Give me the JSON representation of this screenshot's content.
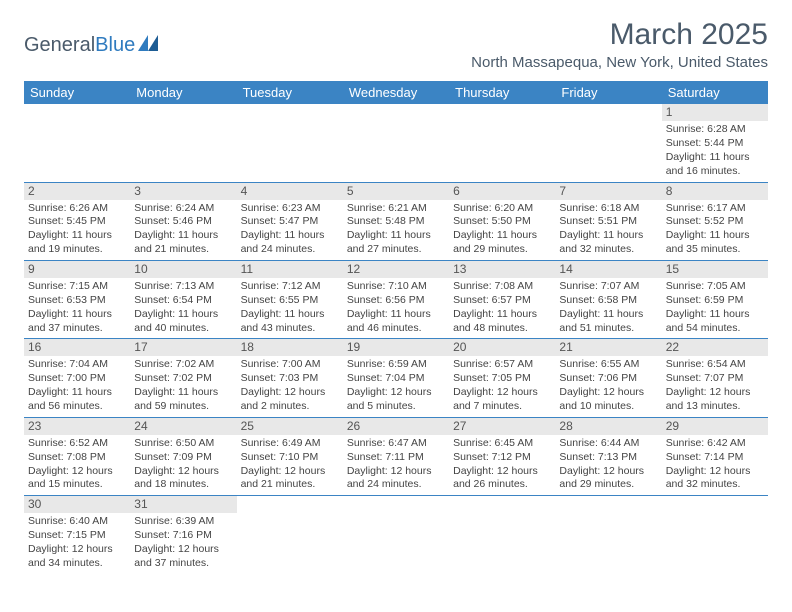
{
  "logo": {
    "text1": "General",
    "text2": "Blue"
  },
  "title": "March 2025",
  "location": "North Massapequa, New York, United States",
  "colors": {
    "header_bg": "#3b84c4",
    "header_text": "#ffffff",
    "grid_line": "#3b84c4",
    "daynum_bg": "#e8e8e8",
    "text": "#4a5a6a"
  },
  "day_names": [
    "Sunday",
    "Monday",
    "Tuesday",
    "Wednesday",
    "Thursday",
    "Friday",
    "Saturday"
  ],
  "weeks": [
    [
      null,
      null,
      null,
      null,
      null,
      null,
      {
        "n": "1",
        "sunrise": "Sunrise: 6:28 AM",
        "sunset": "Sunset: 5:44 PM",
        "daylight": "Daylight: 11 hours and 16 minutes."
      }
    ],
    [
      {
        "n": "2",
        "sunrise": "Sunrise: 6:26 AM",
        "sunset": "Sunset: 5:45 PM",
        "daylight": "Daylight: 11 hours and 19 minutes."
      },
      {
        "n": "3",
        "sunrise": "Sunrise: 6:24 AM",
        "sunset": "Sunset: 5:46 PM",
        "daylight": "Daylight: 11 hours and 21 minutes."
      },
      {
        "n": "4",
        "sunrise": "Sunrise: 6:23 AM",
        "sunset": "Sunset: 5:47 PM",
        "daylight": "Daylight: 11 hours and 24 minutes."
      },
      {
        "n": "5",
        "sunrise": "Sunrise: 6:21 AM",
        "sunset": "Sunset: 5:48 PM",
        "daylight": "Daylight: 11 hours and 27 minutes."
      },
      {
        "n": "6",
        "sunrise": "Sunrise: 6:20 AM",
        "sunset": "Sunset: 5:50 PM",
        "daylight": "Daylight: 11 hours and 29 minutes."
      },
      {
        "n": "7",
        "sunrise": "Sunrise: 6:18 AM",
        "sunset": "Sunset: 5:51 PM",
        "daylight": "Daylight: 11 hours and 32 minutes."
      },
      {
        "n": "8",
        "sunrise": "Sunrise: 6:17 AM",
        "sunset": "Sunset: 5:52 PM",
        "daylight": "Daylight: 11 hours and 35 minutes."
      }
    ],
    [
      {
        "n": "9",
        "sunrise": "Sunrise: 7:15 AM",
        "sunset": "Sunset: 6:53 PM",
        "daylight": "Daylight: 11 hours and 37 minutes."
      },
      {
        "n": "10",
        "sunrise": "Sunrise: 7:13 AM",
        "sunset": "Sunset: 6:54 PM",
        "daylight": "Daylight: 11 hours and 40 minutes."
      },
      {
        "n": "11",
        "sunrise": "Sunrise: 7:12 AM",
        "sunset": "Sunset: 6:55 PM",
        "daylight": "Daylight: 11 hours and 43 minutes."
      },
      {
        "n": "12",
        "sunrise": "Sunrise: 7:10 AM",
        "sunset": "Sunset: 6:56 PM",
        "daylight": "Daylight: 11 hours and 46 minutes."
      },
      {
        "n": "13",
        "sunrise": "Sunrise: 7:08 AM",
        "sunset": "Sunset: 6:57 PM",
        "daylight": "Daylight: 11 hours and 48 minutes."
      },
      {
        "n": "14",
        "sunrise": "Sunrise: 7:07 AM",
        "sunset": "Sunset: 6:58 PM",
        "daylight": "Daylight: 11 hours and 51 minutes."
      },
      {
        "n": "15",
        "sunrise": "Sunrise: 7:05 AM",
        "sunset": "Sunset: 6:59 PM",
        "daylight": "Daylight: 11 hours and 54 minutes."
      }
    ],
    [
      {
        "n": "16",
        "sunrise": "Sunrise: 7:04 AM",
        "sunset": "Sunset: 7:00 PM",
        "daylight": "Daylight: 11 hours and 56 minutes."
      },
      {
        "n": "17",
        "sunrise": "Sunrise: 7:02 AM",
        "sunset": "Sunset: 7:02 PM",
        "daylight": "Daylight: 11 hours and 59 minutes."
      },
      {
        "n": "18",
        "sunrise": "Sunrise: 7:00 AM",
        "sunset": "Sunset: 7:03 PM",
        "daylight": "Daylight: 12 hours and 2 minutes."
      },
      {
        "n": "19",
        "sunrise": "Sunrise: 6:59 AM",
        "sunset": "Sunset: 7:04 PM",
        "daylight": "Daylight: 12 hours and 5 minutes."
      },
      {
        "n": "20",
        "sunrise": "Sunrise: 6:57 AM",
        "sunset": "Sunset: 7:05 PM",
        "daylight": "Daylight: 12 hours and 7 minutes."
      },
      {
        "n": "21",
        "sunrise": "Sunrise: 6:55 AM",
        "sunset": "Sunset: 7:06 PM",
        "daylight": "Daylight: 12 hours and 10 minutes."
      },
      {
        "n": "22",
        "sunrise": "Sunrise: 6:54 AM",
        "sunset": "Sunset: 7:07 PM",
        "daylight": "Daylight: 12 hours and 13 minutes."
      }
    ],
    [
      {
        "n": "23",
        "sunrise": "Sunrise: 6:52 AM",
        "sunset": "Sunset: 7:08 PM",
        "daylight": "Daylight: 12 hours and 15 minutes."
      },
      {
        "n": "24",
        "sunrise": "Sunrise: 6:50 AM",
        "sunset": "Sunset: 7:09 PM",
        "daylight": "Daylight: 12 hours and 18 minutes."
      },
      {
        "n": "25",
        "sunrise": "Sunrise: 6:49 AM",
        "sunset": "Sunset: 7:10 PM",
        "daylight": "Daylight: 12 hours and 21 minutes."
      },
      {
        "n": "26",
        "sunrise": "Sunrise: 6:47 AM",
        "sunset": "Sunset: 7:11 PM",
        "daylight": "Daylight: 12 hours and 24 minutes."
      },
      {
        "n": "27",
        "sunrise": "Sunrise: 6:45 AM",
        "sunset": "Sunset: 7:12 PM",
        "daylight": "Daylight: 12 hours and 26 minutes."
      },
      {
        "n": "28",
        "sunrise": "Sunrise: 6:44 AM",
        "sunset": "Sunset: 7:13 PM",
        "daylight": "Daylight: 12 hours and 29 minutes."
      },
      {
        "n": "29",
        "sunrise": "Sunrise: 6:42 AM",
        "sunset": "Sunset: 7:14 PM",
        "daylight": "Daylight: 12 hours and 32 minutes."
      }
    ],
    [
      {
        "n": "30",
        "sunrise": "Sunrise: 6:40 AM",
        "sunset": "Sunset: 7:15 PM",
        "daylight": "Daylight: 12 hours and 34 minutes."
      },
      {
        "n": "31",
        "sunrise": "Sunrise: 6:39 AM",
        "sunset": "Sunset: 7:16 PM",
        "daylight": "Daylight: 12 hours and 37 minutes."
      },
      null,
      null,
      null,
      null,
      null
    ]
  ]
}
